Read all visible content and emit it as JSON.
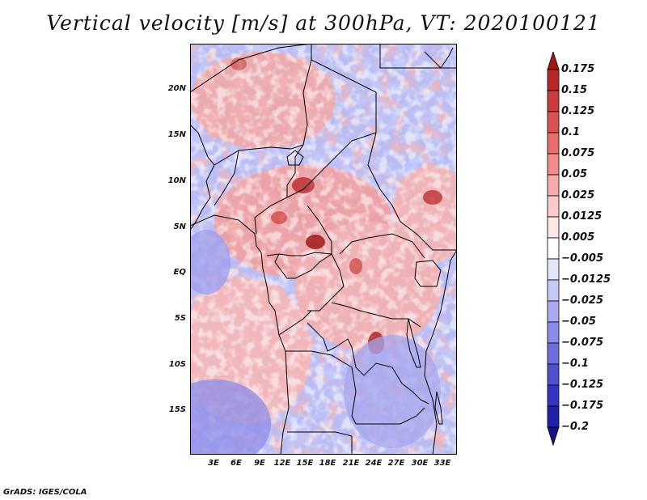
{
  "title": "Vertical velocity [m/s] at 300hPa, VT: 2020100121",
  "footer": "GrADS: IGES/COLA",
  "chart_data": {
    "type": "heatmap",
    "variable": "Vertical velocity",
    "units": "m/s",
    "level": "300hPa",
    "valid_time": "2020100121",
    "lon_range": [
      0.5,
      35
    ],
    "lat_range": [
      -19,
      24.5
    ],
    "lat_ticks": [
      "20N",
      "15N",
      "10N",
      "5N",
      "EQ",
      "5S",
      "10S",
      "15S"
    ],
    "lat_values": [
      20,
      15,
      10,
      5,
      0,
      -5,
      -10,
      -15
    ],
    "lon_ticks": [
      "3E",
      "6E",
      "9E",
      "12E",
      "15E",
      "18E",
      "21E",
      "24E",
      "27E",
      "30E",
      "33E"
    ],
    "lon_values": [
      3,
      6,
      9,
      12,
      15,
      18,
      21,
      24,
      27,
      30,
      33
    ],
    "levels": [
      "0.175",
      "0.15",
      "0.125",
      "0.1",
      "0.075",
      "0.05",
      "0.025",
      "0.0125",
      "0.005",
      "−0.005",
      "−0.0125",
      "−0.025",
      "−0.05",
      "−0.075",
      "−0.1",
      "−0.125",
      "−0.175",
      "−0.2"
    ],
    "colors": [
      "#a01818",
      "#b82828",
      "#cc3c3c",
      "#dc5252",
      "#e86e6e",
      "#f08c8c",
      "#f6acac",
      "#fbcaca",
      "#fde6e6",
      "#ffffff",
      "#e4e4fb",
      "#c8c8f6",
      "#aaaaf0",
      "#8c8ce8",
      "#6e6ede",
      "#5050d0",
      "#3434c0",
      "#2020a8",
      "#14148a"
    ]
  }
}
